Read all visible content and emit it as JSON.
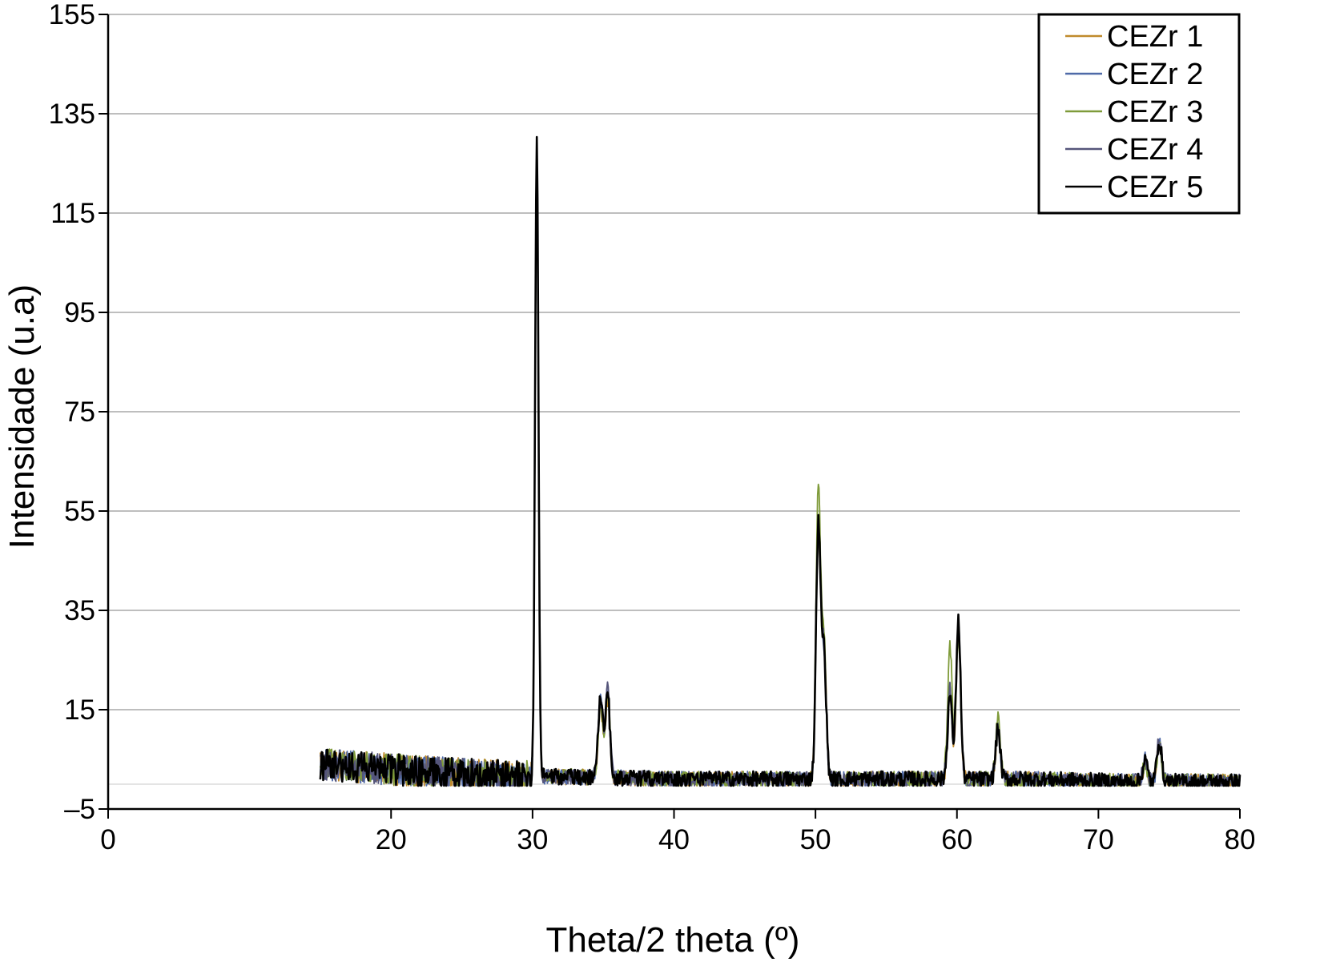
{
  "chart_data": {
    "type": "line",
    "title": "",
    "xlabel": "Theta/2 theta (º)",
    "ylabel": "Intensidade (u.a)",
    "xlim": [
      0,
      80
    ],
    "ylim": [
      -5,
      155
    ],
    "x_ticks": [
      0,
      20,
      30,
      40,
      50,
      60,
      70,
      80
    ],
    "x_tick_labels": [
      "0",
      "20",
      "30",
      "40",
      "50",
      "60",
      "70",
      "80"
    ],
    "y_ticks": [
      -5,
      15,
      35,
      55,
      75,
      95,
      115,
      135,
      155
    ],
    "y_tick_labels": [
      "–5",
      "15",
      "35",
      "55",
      "75",
      "95",
      "115",
      "135",
      "155"
    ],
    "grid": "horizontal",
    "legend_position": "top-right",
    "x_range": [
      15,
      80
    ],
    "background_level": {
      "x": [
        15,
        20,
        25,
        29,
        33,
        40,
        49,
        52,
        58,
        65,
        72,
        80
      ],
      "y": [
        4,
        3,
        2,
        1.5,
        1.5,
        1,
        1,
        1,
        1,
        1,
        0.5,
        0.5
      ]
    },
    "series": [
      {
        "name": "CEZr 1",
        "color": "#c08a2c",
        "peaks": [
          {
            "x": 30.3,
            "y": 126
          },
          {
            "x": 34.8,
            "y": 16
          },
          {
            "x": 35.3,
            "y": 17
          },
          {
            "x": 50.2,
            "y": 51
          },
          {
            "x": 50.6,
            "y": 27
          },
          {
            "x": 59.5,
            "y": 18
          },
          {
            "x": 60.1,
            "y": 31
          },
          {
            "x": 62.9,
            "y": 11
          },
          {
            "x": 73.3,
            "y": 4
          },
          {
            "x": 74.3,
            "y": 8
          }
        ]
      },
      {
        "name": "CEZr 2",
        "color": "#4f6aa8",
        "peaks": [
          {
            "x": 30.3,
            "y": 127
          },
          {
            "x": 34.8,
            "y": 17
          },
          {
            "x": 35.3,
            "y": 19
          },
          {
            "x": 50.2,
            "y": 53
          },
          {
            "x": 50.6,
            "y": 26
          },
          {
            "x": 59.5,
            "y": 19
          },
          {
            "x": 60.1,
            "y": 32
          },
          {
            "x": 62.9,
            "y": 12
          },
          {
            "x": 73.3,
            "y": 5
          },
          {
            "x": 74.3,
            "y": 9
          }
        ]
      },
      {
        "name": "CEZr 3",
        "color": "#7f9b3a",
        "peaks": [
          {
            "x": 30.3,
            "y": 125
          },
          {
            "x": 34.8,
            "y": 16
          },
          {
            "x": 35.3,
            "y": 18
          },
          {
            "x": 50.2,
            "y": 60
          },
          {
            "x": 50.6,
            "y": 28
          },
          {
            "x": 59.5,
            "y": 28
          },
          {
            "x": 60.1,
            "y": 30
          },
          {
            "x": 62.9,
            "y": 13
          },
          {
            "x": 73.3,
            "y": 4
          },
          {
            "x": 74.3,
            "y": 8
          }
        ]
      },
      {
        "name": "CEZr 4",
        "color": "#55557a",
        "peaks": [
          {
            "x": 30.3,
            "y": 128
          },
          {
            "x": 34.8,
            "y": 17
          },
          {
            "x": 35.3,
            "y": 20
          },
          {
            "x": 50.2,
            "y": 52
          },
          {
            "x": 50.6,
            "y": 27
          },
          {
            "x": 59.5,
            "y": 20
          },
          {
            "x": 60.1,
            "y": 32
          },
          {
            "x": 62.9,
            "y": 12
          },
          {
            "x": 73.3,
            "y": 5
          },
          {
            "x": 74.3,
            "y": 9
          }
        ]
      },
      {
        "name": "CEZr 5",
        "color": "#000000",
        "peaks": [
          {
            "x": 30.3,
            "y": 129
          },
          {
            "x": 34.8,
            "y": 18
          },
          {
            "x": 35.3,
            "y": 19
          },
          {
            "x": 50.2,
            "y": 52
          },
          {
            "x": 50.6,
            "y": 26
          },
          {
            "x": 59.5,
            "y": 18
          },
          {
            "x": 60.1,
            "y": 33
          },
          {
            "x": 62.9,
            "y": 11
          },
          {
            "x": 73.3,
            "y": 5
          },
          {
            "x": 74.3,
            "y": 9
          }
        ]
      }
    ]
  }
}
